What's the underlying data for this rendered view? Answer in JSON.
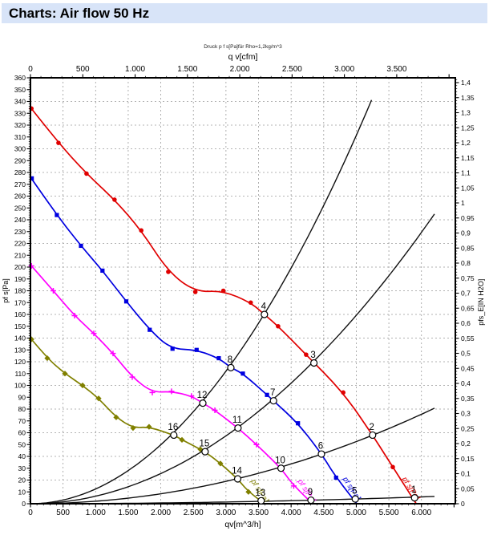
{
  "title": "Charts: Air flow 50 Hz",
  "colors": {
    "title_bar_bg": "#d8e4f8",
    "grid": "#9a9a9a",
    "frame": "#000000",
    "system_curve": "#111111",
    "red": "#e00000",
    "blue": "#0000e0",
    "magenta": "#ff00ff",
    "olive": "#808000"
  },
  "chart_data": {
    "type": "line",
    "subtitle": "Druck p f s[Pa]für Rho=1,2kg/m^3",
    "axes": {
      "bottom": {
        "label": "qv[m^3/h]",
        "min": 0,
        "max": 6520,
        "tick_step": 500,
        "minor_step": 100,
        "tick_labels": [
          "0",
          "500",
          "1.000",
          "1.500",
          "2.000",
          "2.500",
          "3.000",
          "3.500",
          "4.000",
          "4.500",
          "5.000",
          "5.500",
          "6.000"
        ]
      },
      "top": {
        "label": "q v[cfm]",
        "min": 0,
        "max": 4060,
        "tick_step": 500,
        "minor_step": 100,
        "tick_labels": [
          "0",
          "500",
          "1.000",
          "1.500",
          "2.000",
          "2.500",
          "3.000",
          "3.500"
        ]
      },
      "left": {
        "label": "pf s[Pa]",
        "min": 0,
        "max": 360,
        "tick_step": 10,
        "minor_step": 2,
        "tick_labels": [
          "0",
          "10",
          "20",
          "30",
          "40",
          "50",
          "60",
          "70",
          "80",
          "90",
          "100",
          "110",
          "120",
          "130",
          "140",
          "150",
          "160",
          "170",
          "180",
          "190",
          "200",
          "210",
          "220",
          "230",
          "240",
          "250",
          "260",
          "270",
          "280",
          "290",
          "300",
          "310",
          "320",
          "330",
          "340",
          "350",
          "360"
        ]
      },
      "right": {
        "label": "pfs_E[IN H2O]",
        "min": 0,
        "max": 1.416,
        "tick_step": 0.05,
        "minor_step": 0.01,
        "tick_labels": [
          "0",
          "0,05",
          "0,1",
          "0,15",
          "0,2",
          "0,25",
          "0,3",
          "0,35",
          "0,4",
          "0,45",
          "0,5",
          "0,55",
          "0,6",
          "0,65",
          "0,7",
          "0,75",
          "0,8",
          "0,85",
          "0,9",
          "0,95",
          "1",
          "1,05",
          "1,1",
          "1,15",
          "1,2",
          "1,25",
          "1,3",
          "1,35",
          "1,4"
        ]
      }
    },
    "grid": {
      "vertical_step": 500,
      "horizontal_step": 20,
      "dashed": true
    },
    "fan_curves": [
      {
        "name": "fan-curve-red",
        "color": "#e00000",
        "marker": "circle",
        "curve_label": "pf s[Pa]",
        "label_at": [
          5700,
          21
        ],
        "points": [
          [
            0,
            335
          ],
          [
            430,
            305
          ],
          [
            860,
            279
          ],
          [
            1290,
            257
          ],
          [
            1700,
            231
          ],
          [
            2115,
            196
          ],
          [
            2530,
            179
          ],
          [
            2960,
            180
          ],
          [
            3380,
            170
          ],
          [
            3590,
            160
          ],
          [
            3800,
            150
          ],
          [
            4230,
            126
          ],
          [
            4800,
            94
          ],
          [
            5250,
            58
          ],
          [
            5560,
            31
          ],
          [
            5920,
            0
          ]
        ],
        "markers": [
          [
            15,
            334
          ],
          [
            430,
            305
          ],
          [
            860,
            279
          ],
          [
            1290,
            257
          ],
          [
            1700,
            231
          ],
          [
            2115,
            196
          ],
          [
            2530,
            179
          ],
          [
            2960,
            180
          ],
          [
            3380,
            170
          ],
          [
            3800,
            150
          ],
          [
            4230,
            126
          ],
          [
            4800,
            94
          ],
          [
            5560,
            31
          ]
        ]
      },
      {
        "name": "fan-curve-blue",
        "color": "#0000e0",
        "marker": "square",
        "curve_label": "pf s[Pa]",
        "label_at": [
          4790,
          21
        ],
        "points": [
          [
            0,
            276
          ],
          [
            405,
            244
          ],
          [
            775,
            218
          ],
          [
            1105,
            197
          ],
          [
            1470,
            171
          ],
          [
            1830,
            147
          ],
          [
            2150,
            131
          ],
          [
            2550,
            130
          ],
          [
            2890,
            123
          ],
          [
            3075,
            115
          ],
          [
            3260,
            110
          ],
          [
            3630,
            92
          ],
          [
            3730,
            87
          ],
          [
            4105,
            68
          ],
          [
            4470,
            42
          ],
          [
            4690,
            22
          ],
          [
            5010,
            0
          ]
        ],
        "markers": [
          [
            20,
            275
          ],
          [
            405,
            244
          ],
          [
            775,
            218
          ],
          [
            1105,
            197
          ],
          [
            1470,
            171
          ],
          [
            1830,
            147
          ],
          [
            2180,
            131
          ],
          [
            2550,
            130
          ],
          [
            2890,
            123
          ],
          [
            3260,
            110
          ],
          [
            3630,
            92
          ],
          [
            4105,
            68
          ],
          [
            4690,
            22
          ]
        ]
      },
      {
        "name": "fan-curve-magenta",
        "color": "#ff00ff",
        "marker": "plus",
        "curve_label": "pf s[Pa]",
        "label_at": [
          4100,
          19
        ],
        "points": [
          [
            0,
            202
          ],
          [
            350,
            180
          ],
          [
            677,
            159
          ],
          [
            972,
            144
          ],
          [
            1267,
            127
          ],
          [
            1562,
            107
          ],
          [
            1870,
            94
          ],
          [
            2165,
            95
          ],
          [
            2470,
            91
          ],
          [
            2645,
            85
          ],
          [
            2830,
            79
          ],
          [
            3185,
            64
          ],
          [
            3468,
            50
          ],
          [
            3845,
            30
          ],
          [
            4040,
            15
          ],
          [
            4330,
            0
          ]
        ],
        "markers": [
          [
            15,
            201
          ],
          [
            350,
            180
          ],
          [
            677,
            159
          ],
          [
            972,
            144
          ],
          [
            1267,
            127
          ],
          [
            1562,
            107
          ],
          [
            1870,
            94
          ],
          [
            2165,
            95
          ],
          [
            2470,
            91
          ],
          [
            2830,
            79
          ],
          [
            3468,
            50
          ],
          [
            4040,
            15
          ]
        ]
      },
      {
        "name": "fan-curve-olive",
        "color": "#808000",
        "marker": "diamond",
        "curve_label": "pf s[Pa]",
        "label_at": [
          3380,
          19
        ],
        "points": [
          [
            0,
            140
          ],
          [
            258,
            123
          ],
          [
            529,
            110
          ],
          [
            800,
            100
          ],
          [
            1046,
            89
          ],
          [
            1316,
            73
          ],
          [
            1574,
            64
          ],
          [
            1820,
            65
          ],
          [
            2200,
            58
          ],
          [
            2325,
            54
          ],
          [
            2680,
            44
          ],
          [
            2915,
            34
          ],
          [
            3180,
            21
          ],
          [
            3345,
            10
          ],
          [
            3590,
            0
          ]
        ],
        "markers": [
          [
            15,
            139
          ],
          [
            258,
            123
          ],
          [
            529,
            110
          ],
          [
            800,
            100
          ],
          [
            1046,
            89
          ],
          [
            1316,
            73
          ],
          [
            1574,
            64
          ],
          [
            1820,
            65
          ],
          [
            2325,
            54
          ],
          [
            2607,
            46
          ],
          [
            2915,
            34
          ],
          [
            3345,
            10
          ]
        ]
      }
    ],
    "system_curves": [
      {
        "name": "system-curve-1",
        "k": 1.245e-05,
        "q_end": 5235
      },
      {
        "name": "system-curve-2",
        "k": 6.37e-06,
        "q_end": 6200
      },
      {
        "name": "system-curve-3",
        "k": 2.1e-06,
        "q_end": 6200
      },
      {
        "name": "system-curve-4",
        "k": 1.6e-07,
        "q_end": 6200
      }
    ],
    "operating_points": [
      {
        "n": "1",
        "q": 5895,
        "p": 5
      },
      {
        "n": "2",
        "q": 5250,
        "p": 58
      },
      {
        "n": "3",
        "q": 4350,
        "p": 119
      },
      {
        "n": "4",
        "q": 3590,
        "p": 160
      },
      {
        "n": "5",
        "q": 4985,
        "p": 4
      },
      {
        "n": "6",
        "q": 4465,
        "p": 42
      },
      {
        "n": "7",
        "q": 3730,
        "p": 87
      },
      {
        "n": "8",
        "q": 3075,
        "p": 115
      },
      {
        "n": "9",
        "q": 4305,
        "p": 3
      },
      {
        "n": "10",
        "q": 3845,
        "p": 30
      },
      {
        "n": "11",
        "q": 3185,
        "p": 64
      },
      {
        "n": "12",
        "q": 2645,
        "p": 85
      },
      {
        "n": "13",
        "q": 3540,
        "p": 2.5
      },
      {
        "n": "14",
        "q": 3180,
        "p": 21
      },
      {
        "n": "15",
        "q": 2680,
        "p": 44
      },
      {
        "n": "16",
        "q": 2200,
        "p": 58
      }
    ]
  }
}
